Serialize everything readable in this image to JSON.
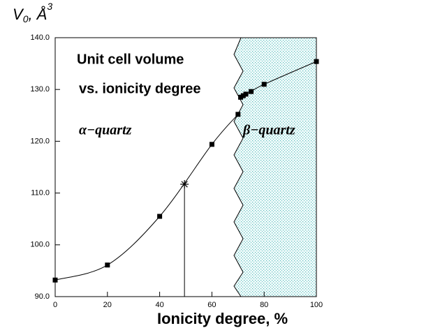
{
  "chart_data": {
    "type": "line",
    "title": "Unit cell volume",
    "subtitle": "vs. ionicity degree",
    "ylabel": {
      "main": "V",
      "sub": "0",
      "rest": ", Å",
      "sup": "3"
    },
    "xlabel": "Ionicity degree, %",
    "series": [
      {
        "name": "α−quartz",
        "color": "#000000",
        "x": [
          0,
          20,
          40,
          60,
          70
        ],
        "values": [
          93.2,
          96.1,
          105.5,
          119.4,
          125.2
        ]
      },
      {
        "name": "β−quartz",
        "color": "#000000",
        "x": [
          71,
          72,
          73,
          75,
          80,
          100
        ],
        "values": [
          128.5,
          128.8,
          129.1,
          129.6,
          131.0,
          135.4
        ]
      }
    ],
    "marker_point": {
      "x": 49.5,
      "y": 111.7
    },
    "xlim": [
      0,
      100
    ],
    "xticks": [
      0,
      20,
      40,
      60,
      80,
      100
    ],
    "ylim": [
      90,
      140
    ],
    "yticks": [
      {
        "value": 90,
        "label": "90.0"
      },
      {
        "value": 100,
        "label": "100.0"
      },
      {
        "value": 110,
        "label": "110.0"
      },
      {
        "value": 120,
        "label": "120.0"
      },
      {
        "value": 130,
        "label": "130.0"
      },
      {
        "value": 140,
        "label": "140.0"
      }
    ]
  }
}
